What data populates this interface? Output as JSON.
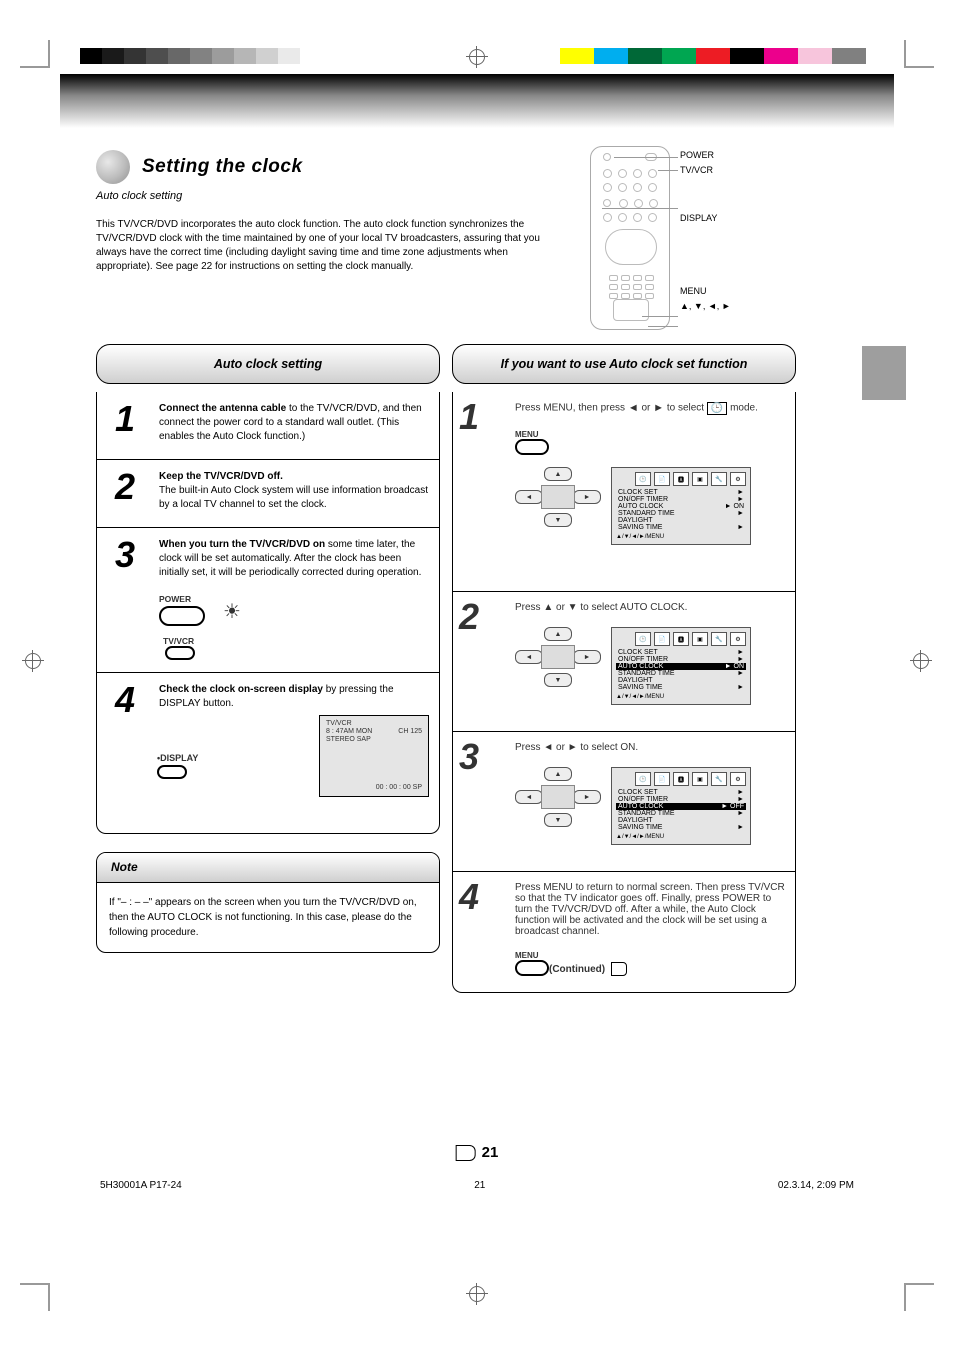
{
  "cropbars_left": [
    "#000000",
    "#1a1a1a",
    "#343434",
    "#4e4e4e",
    "#686868",
    "#828282",
    "#9c9c9c",
    "#b6b6b6",
    "#d0d0d0",
    "#eaeaea"
  ],
  "cropbars_right": [
    "#ffff00",
    "#00aeef",
    "#006837",
    "#00a651",
    "#ed1c24",
    "#000000",
    "#ec008c",
    "#f7c5dc",
    "#808080"
  ],
  "page_number": "21",
  "footer": {
    "left": "5H30001A  P17-24",
    "right": "02.3.14, 2:09 PM",
    "page_small": "21"
  },
  "title": "Setting the clock",
  "subtitle": "Auto clock setting",
  "intro": "This TV/VCR/DVD incorporates the auto clock function.  The auto clock function synchronizes the TV/VCR/DVD clock with the time maintained by one of your local TV broadcasters, assuring that you always have the correct time (including daylight saving time and time zone adjustments when appropriate).  See page 22 for instructions on setting the clock manually.",
  "remote_labels": [
    "POWER",
    "TV/VCR",
    "DISPLAY",
    "MENU",
    "▲, ▼, ◄, ►"
  ],
  "left_box_title": "Auto clock setting",
  "left_steps": [
    {
      "n": "1",
      "text": "Connect the antenna cable to the TV/VCR/DVD, and then connect the power cord to a standard wall outlet.  (This enables the Auto Clock function.)",
      "lead": "Connect the antenna cable"
    },
    {
      "n": "2",
      "text": "Keep the TV/VCR/DVD off. The built-in Auto Clock system will use information broadcast by a local TV channel to set the clock.",
      "lead": "Keep the TV/VCR/DVD off."
    },
    {
      "n": "3",
      "text": "When you turn the TV/VCR/DVD on some time later, the clock will be set automatically.  After the clock has been initially set, it will be periodically corrected during operation.",
      "lead": "When you turn the TV/VCR/DVD on",
      "has_power": true
    },
    {
      "n": "4",
      "text": "Check the clock on-screen display by pressing the DISPLAY button.",
      "lead": "Check the clock on-screen display",
      "has_display": true,
      "screen": {
        "l1": "TV/VCR",
        "l2": " 8 : 47AM  MON",
        "l3": "STEREO  SAP",
        "ch": "CH  125",
        "time": "00 : 00 : 00   SP"
      }
    }
  ],
  "note_title": "Note",
  "note_body": "If \"– : – –\" appears on the screen when you turn the TV/VCR/DVD on, then the AUTO CLOCK is not functioning. In this case, please do the following procedure.",
  "right_box_title": "If you want to use Auto clock set function",
  "right_steps": [
    {
      "n": "1",
      "lead": "Press MENU,",
      "rest": " then press ◄ or ► to select  🕒  mode.",
      "graphics": {
        "oval": "MENU",
        "dpad": true,
        "osd": {
          "highlight": null,
          "auto": "ON"
        }
      }
    },
    {
      "n": "2",
      "lead": "Press ▲ or ▼",
      "rest": " to select AUTO CLOCK.",
      "graphics": {
        "dpad": true,
        "osd": {
          "highlight": "AUTO  CLOCK",
          "auto": "ON"
        }
      }
    },
    {
      "n": "3",
      "lead": "Press ◄ or ►",
      "rest": " to select ON.",
      "graphics": {
        "dpad": true,
        "osd": {
          "highlight": "AUTO  CLOCK",
          "auto": "OFF"
        }
      }
    },
    {
      "n": "4",
      "lead": "Press MENU",
      "rest": " to return to normal screen. Then press TV/VCR so that the TV indicator goes off. Finally, press POWER to turn the TV/VCR/DVD off. After a while, the Auto Clock function will be activated and the clock will be set using a broadcast channel.",
      "graphics": {
        "oval": "MENU"
      }
    }
  ],
  "osd_items": [
    "CLOCK  SET",
    "ON/OFF  TIMER",
    "AUTO  CLOCK",
    "STANDARD  TIME",
    "DAYLIGHT",
    "SAVING  TIME"
  ],
  "osd_footer": "▲/▼/◄/►/MENU",
  "osd_tab_icons": [
    "🕒",
    "📄",
    "🅰",
    "▣",
    "🔧",
    "⚙"
  ],
  "continued": "(Continued)"
}
